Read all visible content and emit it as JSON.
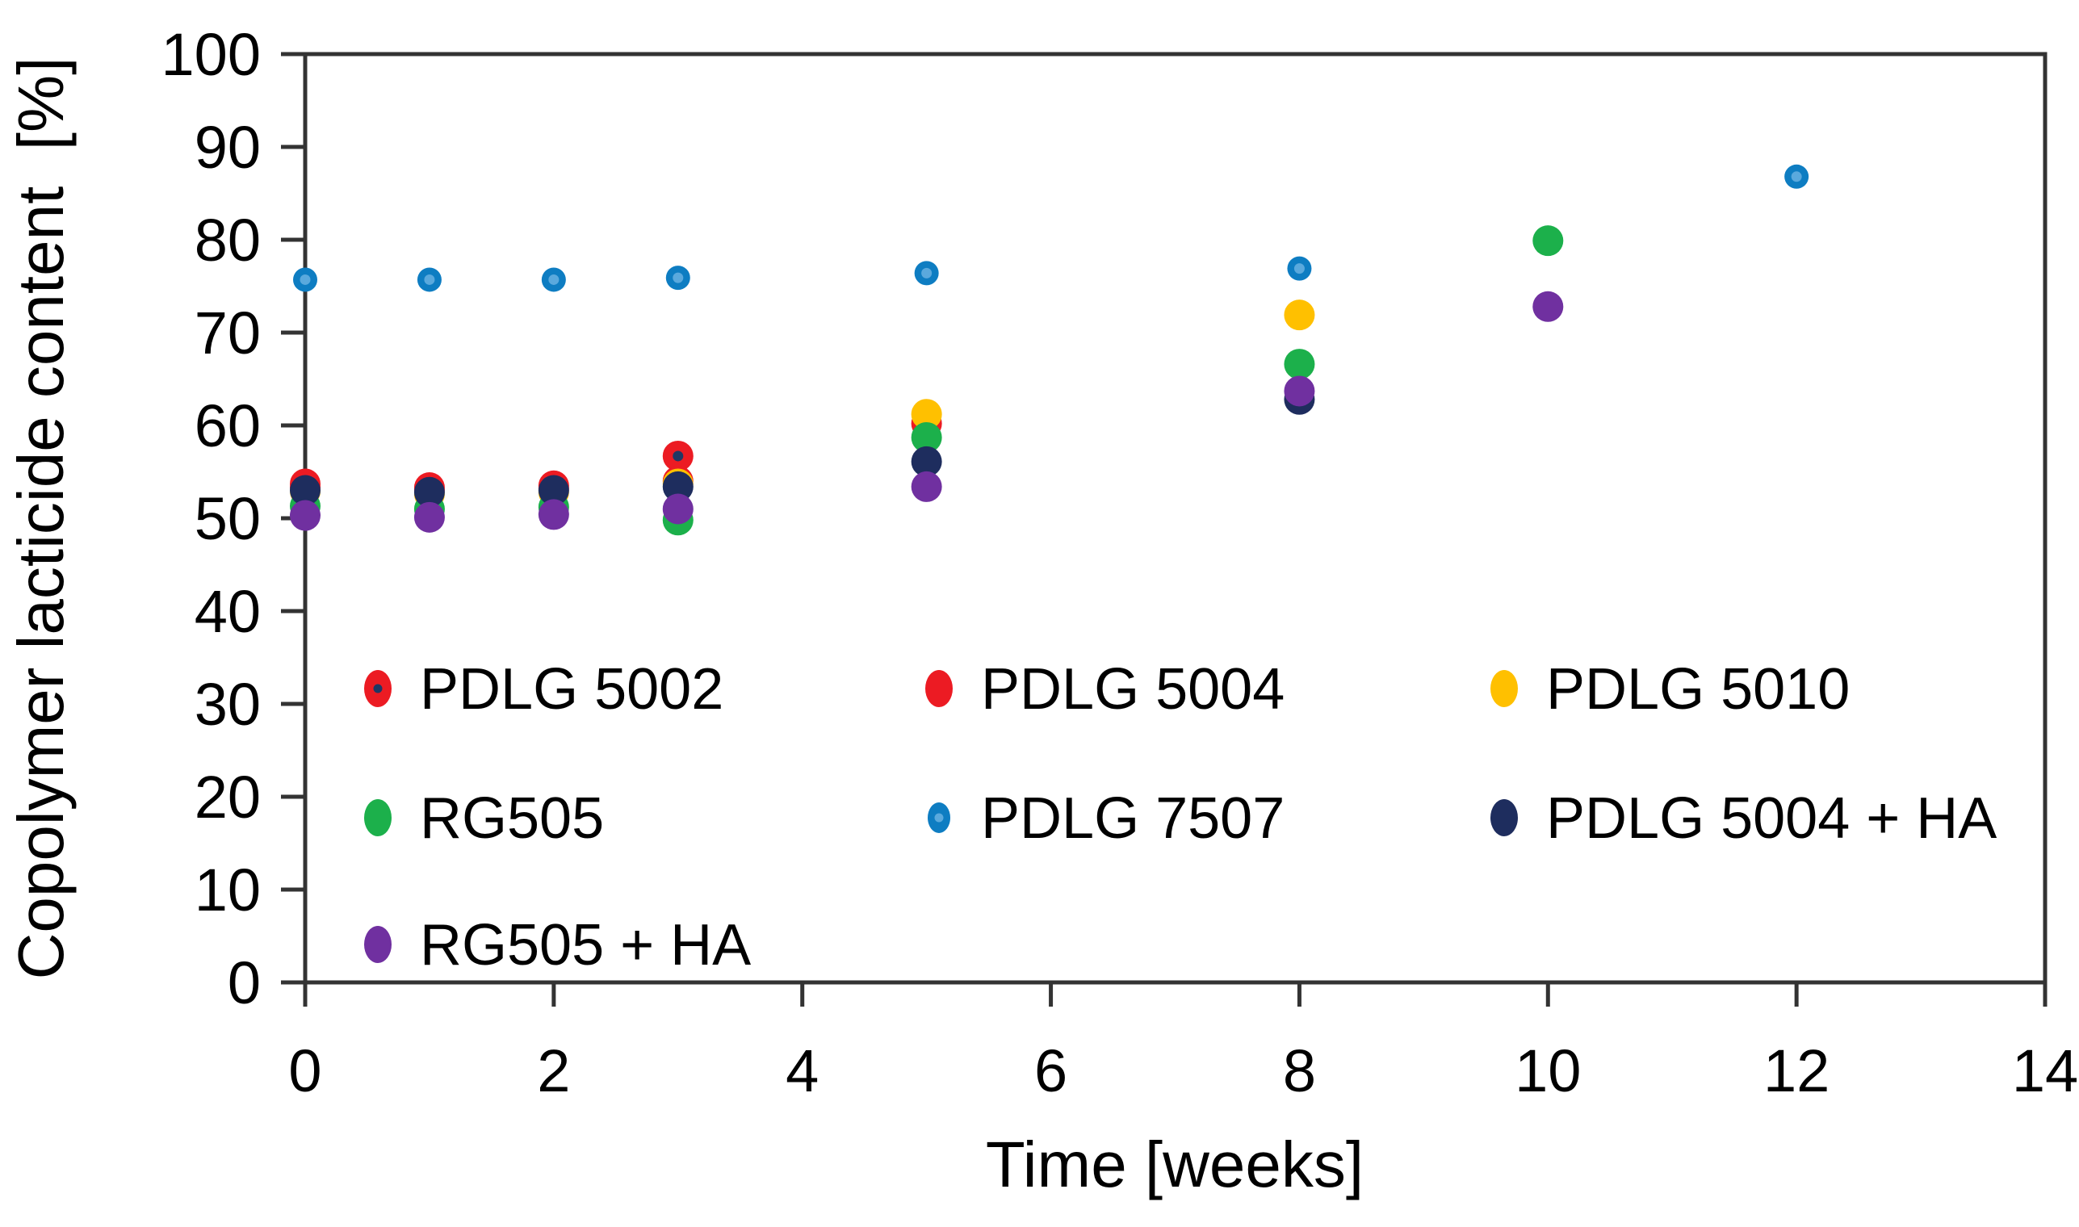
{
  "chart_data": {
    "type": "scatter",
    "title": "",
    "xlabel": "Time [weeks]",
    "ylabel": "Copolymer lacticide content  [%]",
    "xlim": [
      0,
      14
    ],
    "ylim": [
      0,
      100
    ],
    "x_ticks": [
      0,
      2,
      4,
      6,
      8,
      10,
      12,
      14
    ],
    "y_ticks": [
      0,
      10,
      20,
      30,
      40,
      50,
      60,
      70,
      80,
      90,
      100
    ],
    "grid": false,
    "legend_position": "inside-bottom-left-3-columns",
    "axis_color": "#333333",
    "series": [
      {
        "name": "PDLG 5002",
        "color": "#ec1b23",
        "marker": "circle-dark-center",
        "center_color": "#203864",
        "points": [
          [
            0,
            53.7
          ],
          [
            1,
            53.3
          ],
          [
            2,
            53.5
          ],
          [
            3,
            56.7
          ]
        ]
      },
      {
        "name": "PDLG 5004",
        "color": "#ec1b23",
        "marker": "circle",
        "points": [
          [
            0,
            53.3
          ],
          [
            1,
            53.0
          ],
          [
            2,
            53.2
          ],
          [
            3,
            54.0
          ],
          [
            5,
            60.2
          ]
        ]
      },
      {
        "name": "PDLG 5010",
        "color": "#ffc000",
        "marker": "circle",
        "points": [
          [
            0,
            52.9
          ],
          [
            1,
            52.6
          ],
          [
            2,
            52.8
          ],
          [
            3,
            53.7
          ],
          [
            5,
            61.2
          ],
          [
            8,
            71.9
          ]
        ]
      },
      {
        "name": "RG505",
        "color": "#1cb04b",
        "marker": "circle",
        "points": [
          [
            0,
            51.3
          ],
          [
            1,
            51.0
          ],
          [
            2,
            51.2
          ],
          [
            3,
            49.8
          ],
          [
            5,
            58.7
          ],
          [
            8,
            66.6
          ],
          [
            10,
            79.9
          ]
        ]
      },
      {
        "name": "PDLG 7507",
        "color": "#0e7dc2",
        "marker": "circle-light-center",
        "center_color": "#5aa9dd",
        "points": [
          [
            0,
            75.7
          ],
          [
            1,
            75.7
          ],
          [
            2,
            75.7
          ],
          [
            3,
            75.9
          ],
          [
            5,
            76.4
          ],
          [
            8,
            76.9
          ],
          [
            12,
            86.8
          ]
        ]
      },
      {
        "name": "PDLG 5004 + HA",
        "color": "#1e2d5e",
        "marker": "circle",
        "points": [
          [
            0,
            53.0
          ],
          [
            1,
            52.8
          ],
          [
            2,
            53.0
          ],
          [
            3,
            53.4
          ],
          [
            5,
            56.1
          ],
          [
            8,
            62.8
          ]
        ]
      },
      {
        "name": "RG505 + HA",
        "color": "#7030a0",
        "marker": "circle",
        "points": [
          [
            0,
            50.3
          ],
          [
            1,
            50.1
          ],
          [
            2,
            50.4
          ],
          [
            3,
            51.0
          ],
          [
            5,
            53.4
          ],
          [
            8,
            63.7
          ],
          [
            10,
            72.8
          ]
        ]
      }
    ]
  }
}
